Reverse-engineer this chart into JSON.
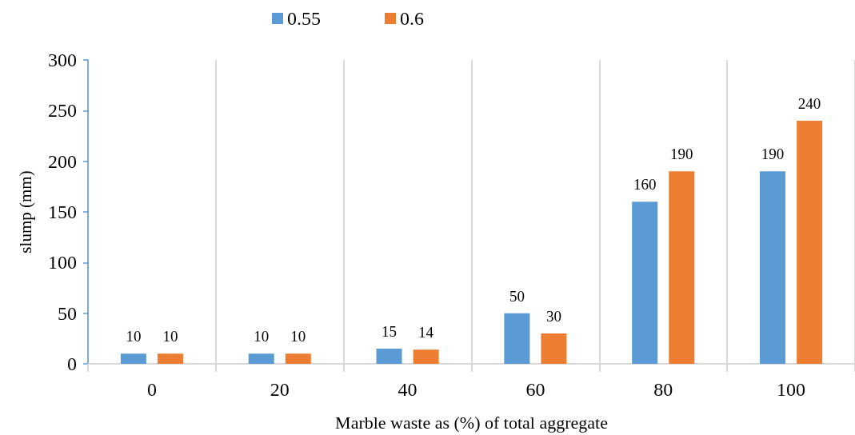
{
  "chart_data": {
    "type": "bar",
    "categories": [
      "0",
      "20",
      "40",
      "60",
      "80",
      "100"
    ],
    "series": [
      {
        "name": "0.55",
        "color": "#5b9bd5",
        "values": [
          10,
          10,
          15,
          50,
          160,
          190
        ]
      },
      {
        "name": "0.6",
        "color": "#ed7d31",
        "values": [
          10,
          10,
          14,
          30,
          190,
          240
        ]
      }
    ],
    "xlabel": "Marble waste as (%) of total aggregate",
    "ylabel": "slump (mm)",
    "ylim": [
      0,
      300
    ],
    "yticks": [
      0,
      50,
      100,
      150,
      200,
      250,
      300
    ],
    "data_labels": true,
    "grid": "x",
    "legend": "top"
  }
}
